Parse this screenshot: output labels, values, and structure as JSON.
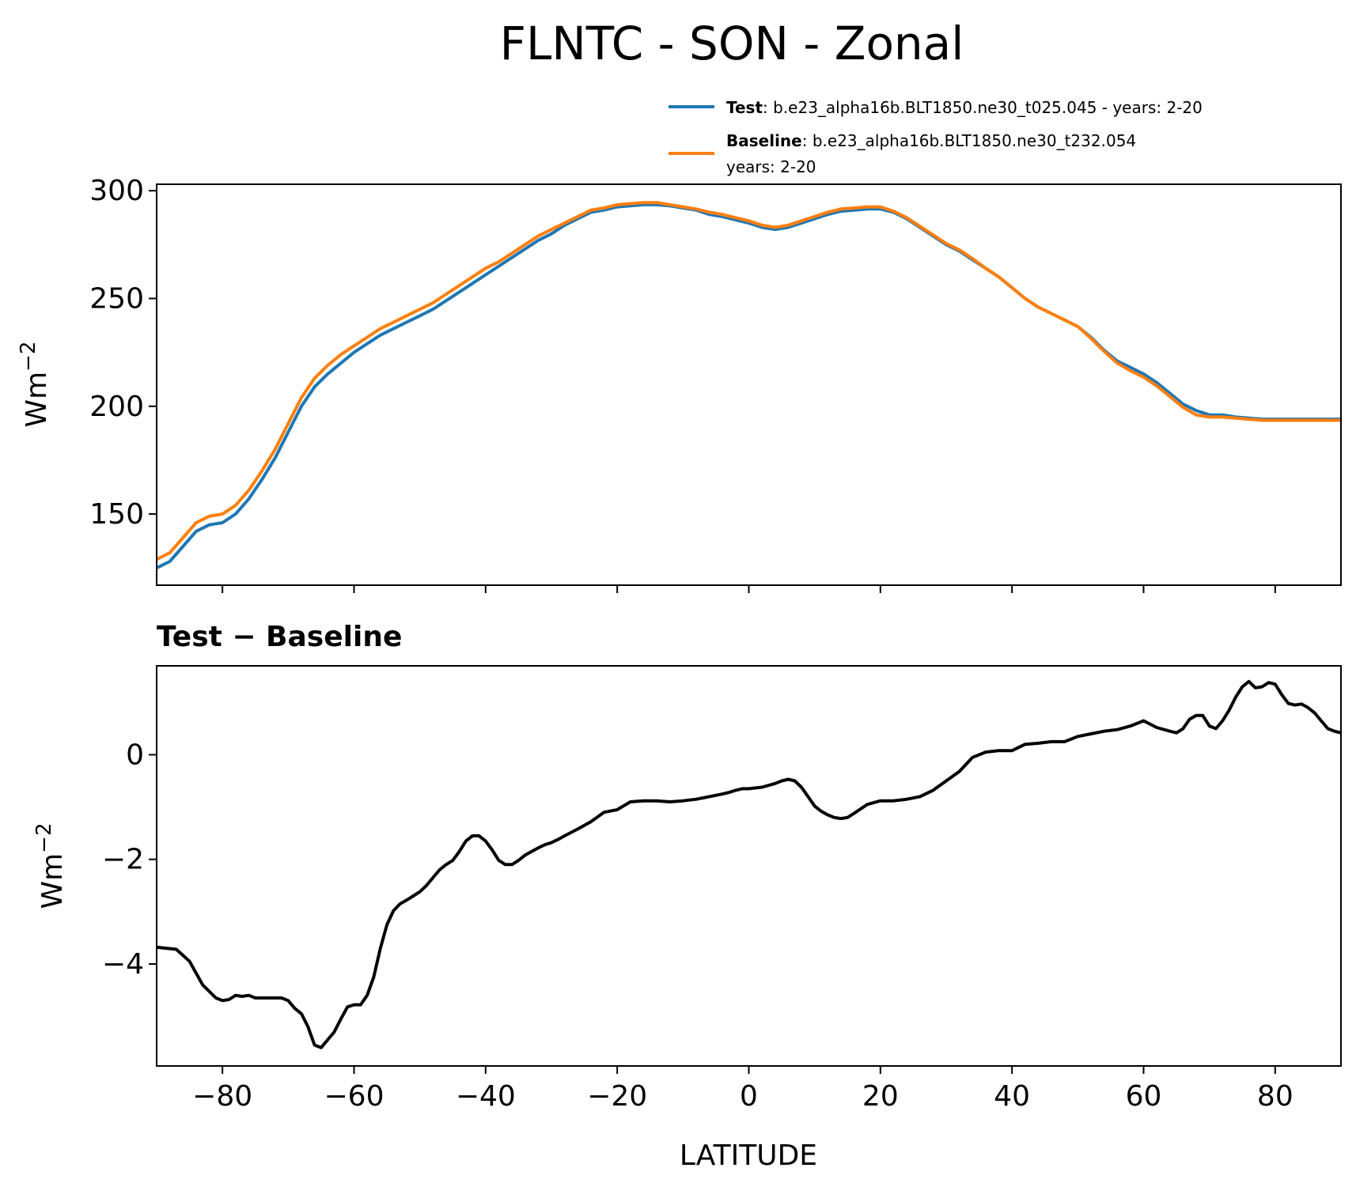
{
  "figure": {
    "title": "FLNTC - SON - Zonal"
  },
  "legend": {
    "test_key": "Test",
    "test_text": ": b.e23_alpha16b.BLT1850.ne30_t025.045 - years: 2-20",
    "baseline_key": "Baseline",
    "baseline_text": ": b.e23_alpha16b.BLT1850.ne30_t232.054",
    "baseline_line2": "years: 2-20"
  },
  "colors": {
    "test": "#1f77b4",
    "baseline": "#ff7f0e",
    "difference": "#000000"
  },
  "chart_data": [
    {
      "type": "line",
      "ylabel": "Wm",
      "ylabel_sup": "−2",
      "xlim": [
        -90,
        90
      ],
      "ylim": [
        117,
        303
      ],
      "yticks": [
        150,
        200,
        250,
        300
      ],
      "xticks": [
        -80,
        -60,
        -40,
        -20,
        0,
        20,
        40,
        60,
        80
      ],
      "x": [
        -90,
        -88,
        -86,
        -84,
        -82,
        -80,
        -78,
        -76,
        -74,
        -72,
        -70,
        -68,
        -66,
        -64,
        -62,
        -60,
        -58,
        -56,
        -54,
        -52,
        -50,
        -48,
        -46,
        -44,
        -42,
        -40,
        -38,
        -36,
        -34,
        -32,
        -30,
        -28,
        -26,
        -24,
        -22,
        -20,
        -18,
        -16,
        -14,
        -12,
        -10,
        -8,
        -6,
        -4,
        -2,
        0,
        2,
        4,
        6,
        8,
        10,
        12,
        14,
        16,
        18,
        20,
        22,
        24,
        26,
        28,
        30,
        32,
        34,
        36,
        38,
        40,
        42,
        44,
        46,
        48,
        50,
        52,
        54,
        56,
        58,
        60,
        62,
        64,
        66,
        68,
        70,
        72,
        74,
        76,
        78,
        80,
        82,
        84,
        86,
        88,
        90
      ],
      "series": [
        {
          "name": "Test",
          "values": [
            125,
            128,
            135,
            142,
            145,
            146,
            150,
            157,
            166,
            176,
            188,
            200,
            209,
            215,
            220,
            225,
            229,
            233,
            236,
            239,
            242,
            245,
            249,
            253,
            257,
            261,
            265,
            269,
            273,
            277,
            280,
            284,
            287,
            290,
            291,
            292.5,
            293,
            293.5,
            293.5,
            293,
            292,
            291,
            289,
            288,
            286.5,
            285,
            283,
            282,
            283,
            285,
            287,
            289,
            290.5,
            291,
            291.5,
            291.5,
            290,
            287,
            283,
            279,
            275,
            272,
            268,
            264,
            260,
            255,
            250,
            246,
            243,
            240,
            237,
            232,
            226,
            221,
            218,
            215,
            211,
            206,
            201,
            198,
            196,
            196,
            195,
            194.5,
            194,
            194,
            194,
            194,
            194,
            194,
            194
          ]
        },
        {
          "name": "Baseline",
          "values": [
            129,
            132,
            139,
            146,
            149,
            150,
            154,
            161,
            170,
            180,
            192,
            204,
            213,
            219,
            224,
            228,
            232,
            236,
            239,
            242,
            245,
            248,
            252,
            256,
            260,
            264,
            267,
            271,
            275,
            279,
            282,
            285,
            288,
            291,
            292,
            293.5,
            294,
            294.5,
            294.5,
            293.5,
            292.5,
            291.5,
            290,
            289,
            287.5,
            286,
            284,
            283,
            284,
            286,
            288,
            290,
            291.5,
            292,
            292.5,
            292.5,
            290.5,
            287.5,
            283.5,
            279.5,
            275.5,
            272.5,
            268.5,
            264,
            260,
            255,
            250,
            246,
            243,
            240,
            237,
            231.5,
            225.5,
            220,
            216.5,
            213.5,
            209.5,
            204.5,
            199.5,
            196,
            195,
            195,
            194.5,
            194,
            193.5,
            193.5,
            193.5,
            193.5,
            193.5,
            193.5,
            193.5
          ]
        }
      ]
    },
    {
      "type": "line",
      "title": "Test − Baseline",
      "xlabel": "LATITUDE",
      "ylabel": "Wm",
      "ylabel_sup": "−2",
      "xlim": [
        -90,
        90
      ],
      "ylim": [
        -5.95,
        1.7
      ],
      "yticks": [
        -4,
        -2,
        0
      ],
      "xticks": [
        -80,
        -60,
        -40,
        -20,
        0,
        20,
        40,
        60,
        80
      ],
      "series": [
        {
          "x": [
            -90,
            -87,
            -85,
            -83,
            -81,
            -80,
            -79,
            -78,
            -77,
            -76,
            -75,
            -73,
            -71,
            -70,
            -69,
            -68,
            -67,
            -66,
            -65,
            -64,
            -63,
            -62,
            -61,
            -60,
            -59,
            -58,
            -57,
            -56,
            -55,
            -54,
            -53,
            -52,
            -51,
            -50,
            -49,
            -48,
            -47,
            -46,
            -45,
            -44,
            -43,
            -42,
            -41,
            -40,
            -39,
            -38,
            -37,
            -36,
            -35,
            -34,
            -33,
            -32,
            -31,
            -30,
            -29,
            -28,
            -26,
            -24,
            -22,
            -20,
            -18,
            -16,
            -14,
            -12,
            -10,
            -8,
            -6,
            -4,
            -3,
            -2,
            -1,
            0,
            2,
            4,
            5,
            6,
            7,
            8,
            9,
            10,
            11,
            12,
            13,
            14,
            15,
            16,
            18,
            20,
            22,
            24,
            26,
            28,
            30,
            32,
            34,
            36,
            38,
            40,
            42,
            44,
            46,
            48,
            50,
            52,
            54,
            56,
            58,
            60,
            62,
            64,
            65,
            66,
            67,
            68,
            69,
            70,
            71,
            72,
            73,
            74,
            75,
            76,
            77,
            78,
            79,
            80,
            81,
            82,
            83,
            84,
            85,
            86,
            87,
            88,
            89,
            90
          ],
          "values": [
            -3.68,
            -3.72,
            -3.95,
            -4.4,
            -4.65,
            -4.7,
            -4.68,
            -4.6,
            -4.62,
            -4.6,
            -4.65,
            -4.65,
            -4.65,
            -4.7,
            -4.85,
            -4.95,
            -5.2,
            -5.55,
            -5.6,
            -5.45,
            -5.3,
            -5.05,
            -4.82,
            -4.78,
            -4.78,
            -4.6,
            -4.25,
            -3.7,
            -3.25,
            -2.98,
            -2.85,
            -2.78,
            -2.7,
            -2.62,
            -2.5,
            -2.35,
            -2.2,
            -2.1,
            -2.02,
            -1.85,
            -1.65,
            -1.55,
            -1.55,
            -1.65,
            -1.82,
            -2.02,
            -2.1,
            -2.1,
            -2.02,
            -1.92,
            -1.85,
            -1.78,
            -1.72,
            -1.68,
            -1.62,
            -1.55,
            -1.42,
            -1.28,
            -1.1,
            -1.05,
            -0.9,
            -0.88,
            -0.88,
            -0.9,
            -0.88,
            -0.85,
            -0.8,
            -0.75,
            -0.72,
            -0.68,
            -0.65,
            -0.65,
            -0.62,
            -0.55,
            -0.5,
            -0.47,
            -0.5,
            -0.62,
            -0.8,
            -0.98,
            -1.08,
            -1.15,
            -1.2,
            -1.22,
            -1.2,
            -1.12,
            -0.95,
            -0.88,
            -0.88,
            -0.85,
            -0.8,
            -0.68,
            -0.5,
            -0.32,
            -0.05,
            0.05,
            0.08,
            0.08,
            0.2,
            0.22,
            0.25,
            0.25,
            0.35,
            0.4,
            0.45,
            0.48,
            0.55,
            0.65,
            0.52,
            0.45,
            0.42,
            0.5,
            0.68,
            0.75,
            0.75,
            0.55,
            0.5,
            0.65,
            0.85,
            1.1,
            1.3,
            1.4,
            1.28,
            1.3,
            1.38,
            1.35,
            1.15,
            0.98,
            0.95,
            0.97,
            0.9,
            0.8,
            0.65,
            0.5,
            0.45,
            0.42
          ]
        }
      ]
    }
  ]
}
